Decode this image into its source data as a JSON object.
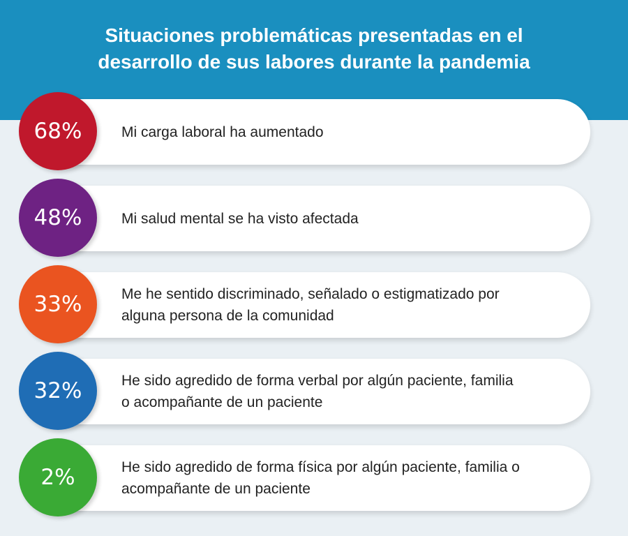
{
  "chart_data": {
    "type": "bar",
    "title_lines": [
      "Situaciones problemáticas presentadas en el",
      "desarrollo de sus labores durante la pandemia"
    ],
    "categories": [
      "Mi carga laboral ha aumentado",
      "Mi salud mental se ha visto afectada",
      "Me he sentido discriminado, señalado o estigmatizado por alguna persona de la comunidad",
      "He sido agredido de forma verbal por algún paciente, familia o acompañante de un paciente",
      "He sido agredido de forma física por algún paciente, familia o acompañante de un paciente"
    ],
    "category_lines": [
      [
        "Mi carga laboral ha aumentado"
      ],
      [
        "Mi salud mental se ha visto afectada"
      ],
      [
        "Me he sentido discriminado, señalado o estigmatizado por",
        "alguna persona de la comunidad"
      ],
      [
        "He sido agredido de forma verbal por algún paciente, familia",
        "o acompañante de un paciente"
      ],
      [
        "He sido agredido de forma física por algún paciente, familia o",
        "acompañante de un paciente"
      ]
    ],
    "values": [
      68,
      48,
      33,
      32,
      2
    ],
    "value_labels": [
      "68%",
      "48%",
      "33%",
      "32%",
      "2%"
    ],
    "colors": [
      "#c0182c",
      "#6e2283",
      "#ea5420",
      "#1f6db5",
      "#3aaa35"
    ]
  },
  "colors": {
    "header": "#1a8fbf",
    "background": "#eaf0f4"
  }
}
